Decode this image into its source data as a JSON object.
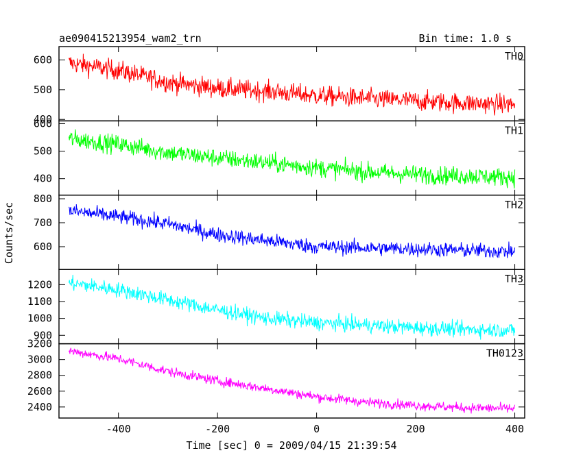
{
  "chart_data": {
    "type": "line",
    "title": "ae090415213954_wam2_trn",
    "subtitle": "Bin time: 1.0 s",
    "xlabel": "Time [sec] 0 = 2009/04/15 21:39:54",
    "ylabel": "Counts/sec",
    "xlim": [
      -520,
      420
    ],
    "x_ticks": [
      -400,
      -200,
      0,
      200,
      400
    ],
    "x_range": [
      -500,
      400
    ],
    "x_step": 1,
    "grid": false,
    "panels": [
      {
        "name": "TH0",
        "color": "#ff0000",
        "ylim": [
          395,
          645
        ],
        "y_ticks": [
          400,
          500,
          600
        ],
        "trend": [
          [
            -500,
            590
          ],
          [
            -400,
            565
          ],
          [
            -300,
            525
          ],
          [
            -200,
            505
          ],
          [
            -100,
            495
          ],
          [
            0,
            480
          ],
          [
            100,
            470
          ],
          [
            200,
            462
          ],
          [
            300,
            455
          ],
          [
            400,
            450
          ]
        ],
        "noise": 30
      },
      {
        "name": "TH1",
        "color": "#00ff00",
        "ylim": [
          340,
          610
        ],
        "y_ticks": [
          400,
          500,
          600
        ],
        "trend": [
          [
            -500,
            545
          ],
          [
            -400,
            525
          ],
          [
            -300,
            495
          ],
          [
            -200,
            475
          ],
          [
            -100,
            458
          ],
          [
            0,
            440
          ],
          [
            100,
            425
          ],
          [
            200,
            415
          ],
          [
            300,
            410
          ],
          [
            400,
            405
          ]
        ],
        "noise": 30
      },
      {
        "name": "TH2",
        "color": "#0000ff",
        "ylim": [
          505,
          815
        ],
        "y_ticks": [
          600,
          700,
          800
        ],
        "trend": [
          [
            -500,
            750
          ],
          [
            -400,
            725
          ],
          [
            -300,
            695
          ],
          [
            -200,
            650
          ],
          [
            -100,
            625
          ],
          [
            0,
            600
          ],
          [
            100,
            595
          ],
          [
            200,
            590
          ],
          [
            300,
            585
          ],
          [
            400,
            580
          ]
        ],
        "noise": 28
      },
      {
        "name": "TH3",
        "color": "#00ffff",
        "ylim": [
          850,
          1290
        ],
        "y_ticks": [
          900,
          1000,
          1100,
          1200
        ],
        "trend": [
          [
            -500,
            1210
          ],
          [
            -400,
            1170
          ],
          [
            -300,
            1110
          ],
          [
            -200,
            1050
          ],
          [
            -100,
            1000
          ],
          [
            0,
            975
          ],
          [
            100,
            960
          ],
          [
            200,
            945
          ],
          [
            300,
            935
          ],
          [
            400,
            930
          ]
        ],
        "noise": 40
      },
      {
        "name": "TH0123",
        "color": "#ff00ff",
        "ylim": [
          2260,
          3200
        ],
        "y_ticks": [
          2400,
          2600,
          2800,
          3000,
          3200
        ],
        "trend": [
          [
            -500,
            3110
          ],
          [
            -400,
            3010
          ],
          [
            -300,
            2850
          ],
          [
            -200,
            2730
          ],
          [
            -100,
            2630
          ],
          [
            0,
            2530
          ],
          [
            100,
            2460
          ],
          [
            200,
            2420
          ],
          [
            300,
            2390
          ],
          [
            400,
            2380
          ]
        ],
        "noise": 55
      }
    ]
  }
}
